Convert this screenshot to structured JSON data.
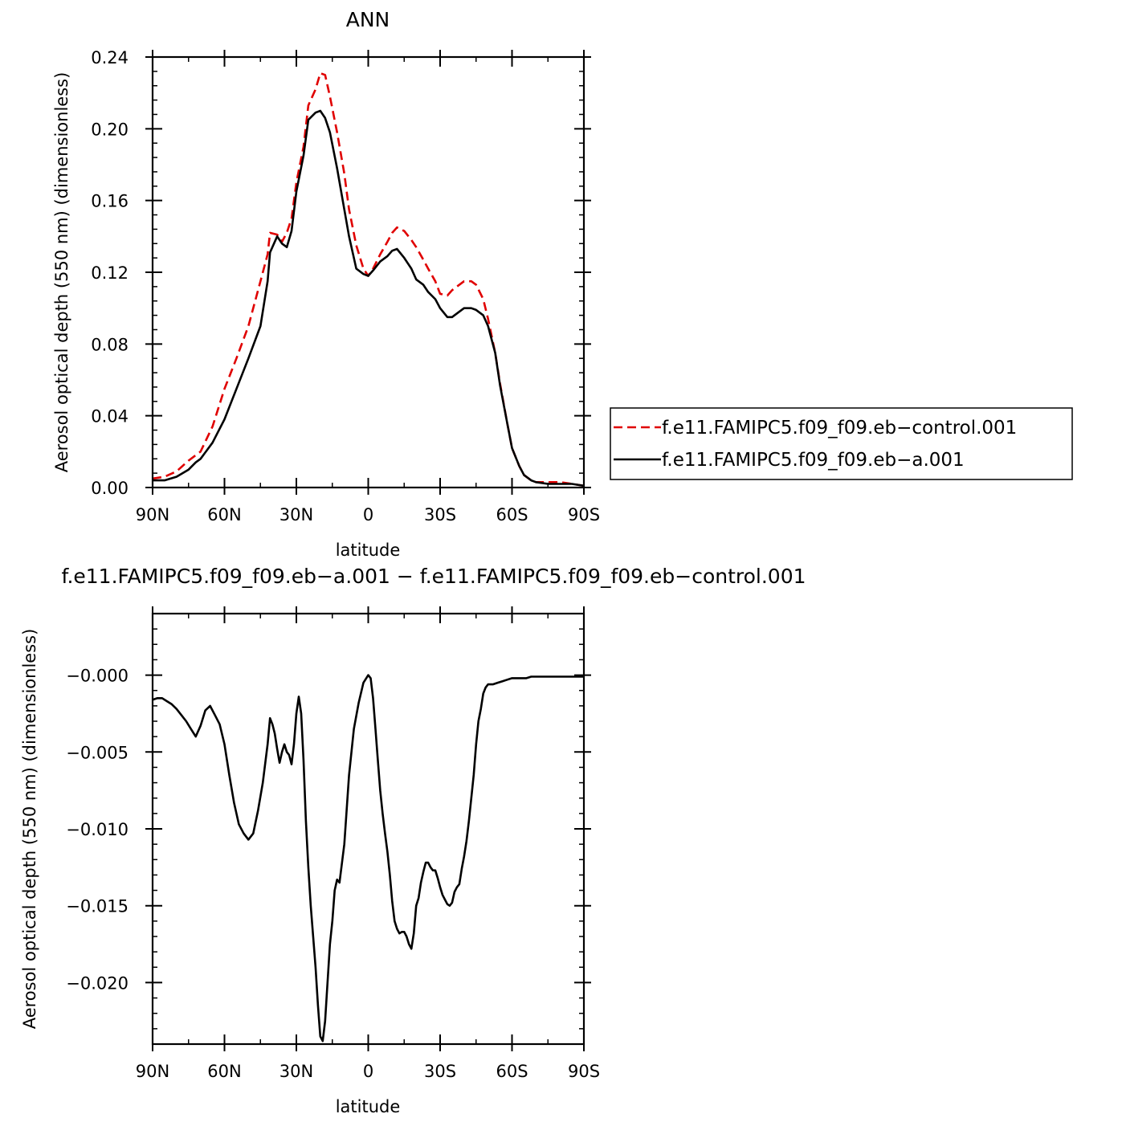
{
  "chart_data": [
    {
      "type": "line",
      "title": "ANN",
      "xlabel": "latitude",
      "ylabel": "Aerosol optical depth (550 nm) (dimensionless)",
      "xlim": [
        -90,
        90
      ],
      "ylim": [
        0,
        0.24
      ],
      "xticks": [
        -90,
        -60,
        -30,
        0,
        30,
        60,
        90
      ],
      "xtick_labels": [
        "90N",
        "60N",
        "30N",
        "0",
        "30S",
        "60S",
        "90S"
      ],
      "yticks": [
        0,
        0.04,
        0.08,
        0.12,
        0.16,
        0.2,
        0.24
      ],
      "ytick_labels": [
        "0.00",
        "0.04",
        "0.08",
        "0.12",
        "0.16",
        "0.20",
        "0.24"
      ],
      "legend_position": "right",
      "series": [
        {
          "name": "f.e11.FAMIPC5.f09_f09.eb−control.001",
          "color": "#e00000",
          "dash": "dashed",
          "x": [
            -90,
            -85,
            -80,
            -75,
            -70,
            -65,
            -60,
            -55,
            -50,
            -45,
            -42,
            -41,
            -38,
            -36,
            -34,
            -32,
            -30,
            -27,
            -25,
            -22,
            -20,
            -18,
            -16,
            -13,
            -10,
            -8,
            -5,
            -2,
            0,
            2,
            5,
            8,
            10,
            12,
            15,
            18,
            20,
            23,
            25,
            28,
            30,
            33,
            35,
            38,
            40,
            43,
            45,
            48,
            50,
            53,
            55,
            58,
            60,
            63,
            65,
            68,
            70,
            75,
            80,
            85,
            90
          ],
          "y": [
            0.005,
            0.006,
            0.009,
            0.015,
            0.02,
            0.034,
            0.055,
            0.072,
            0.09,
            0.115,
            0.13,
            0.142,
            0.141,
            0.137,
            0.142,
            0.15,
            0.17,
            0.19,
            0.213,
            0.222,
            0.231,
            0.23,
            0.218,
            0.198,
            0.175,
            0.155,
            0.135,
            0.122,
            0.118,
            0.122,
            0.13,
            0.137,
            0.142,
            0.145,
            0.143,
            0.138,
            0.134,
            0.127,
            0.122,
            0.115,
            0.108,
            0.107,
            0.11,
            0.113,
            0.115,
            0.115,
            0.113,
            0.105,
            0.094,
            0.075,
            0.058,
            0.036,
            0.022,
            0.012,
            0.007,
            0.004,
            0.003,
            0.003,
            0.003,
            0.002,
            0.001
          ]
        },
        {
          "name": "f.e11.FAMIPC5.f09_f09.eb−a.001",
          "color": "#000000",
          "dash": "solid",
          "x": [
            -90,
            -85,
            -80,
            -75,
            -72,
            -70,
            -65,
            -60,
            -55,
            -50,
            -45,
            -42,
            -41,
            -38,
            -36,
            -34,
            -32,
            -30,
            -27,
            -25,
            -22,
            -20,
            -18,
            -16,
            -13,
            -10,
            -8,
            -5,
            -2,
            0,
            2,
            5,
            8,
            10,
            12,
            15,
            18,
            20,
            23,
            25,
            28,
            30,
            33,
            35,
            38,
            40,
            43,
            45,
            48,
            50,
            53,
            55,
            58,
            60,
            63,
            65,
            68,
            70,
            75,
            80,
            85,
            90
          ],
          "y": [
            0.004,
            0.004,
            0.006,
            0.01,
            0.014,
            0.016,
            0.025,
            0.038,
            0.055,
            0.072,
            0.09,
            0.115,
            0.131,
            0.14,
            0.136,
            0.134,
            0.143,
            0.165,
            0.185,
            0.205,
            0.209,
            0.21,
            0.206,
            0.198,
            0.178,
            0.155,
            0.14,
            0.122,
            0.119,
            0.118,
            0.121,
            0.126,
            0.129,
            0.132,
            0.133,
            0.128,
            0.122,
            0.116,
            0.113,
            0.109,
            0.105,
            0.1,
            0.095,
            0.095,
            0.098,
            0.1,
            0.1,
            0.099,
            0.096,
            0.09,
            0.075,
            0.057,
            0.036,
            0.022,
            0.012,
            0.007,
            0.004,
            0.003,
            0.002,
            0.002,
            0.002,
            0.001
          ]
        }
      ]
    },
    {
      "type": "line",
      "title": "f.e11.FAMIPC5.f09_f09.eb−a.001 − f.e11.FAMIPC5.f09_f09.eb−control.001",
      "xlabel": "latitude",
      "ylabel": "Aerosol optical depth (550 nm) (dimensionless)",
      "xlim": [
        -90,
        90
      ],
      "ylim": [
        -0.024,
        0.004
      ],
      "xticks": [
        -90,
        -60,
        -30,
        0,
        30,
        60,
        90
      ],
      "xtick_labels": [
        "90N",
        "60N",
        "30N",
        "0",
        "30S",
        "60S",
        "90S"
      ],
      "yticks": [
        -0.02,
        -0.015,
        -0.01,
        -0.005,
        0
      ],
      "ytick_labels": [
        "−0.020",
        "−0.015",
        "−0.010",
        "−0.005",
        "−0.000"
      ],
      "series": [
        {
          "color": "#000000",
          "dash": "solid",
          "x": [
            -90,
            -88,
            -86,
            -84,
            -82,
            -80,
            -78,
            -76,
            -74,
            -72,
            -70,
            -68,
            -66,
            -64,
            -62,
            -60,
            -58,
            -56,
            -54,
            -52,
            -50,
            -48,
            -46,
            -44,
            -42,
            -41,
            -40,
            -39,
            -38,
            -37,
            -36,
            -35,
            -34,
            -33,
            -32,
            -31,
            -30,
            -29,
            -28,
            -27,
            -26,
            -25,
            -24,
            -23,
            -22,
            -21,
            -20,
            -19,
            -18,
            -17,
            -16,
            -15,
            -14,
            -13,
            -12,
            -10,
            -8,
            -6,
            -4,
            -2,
            0,
            1,
            2,
            3,
            4,
            5,
            6,
            7,
            8,
            9,
            10,
            11,
            12,
            13,
            14,
            15,
            16,
            17,
            18,
            19,
            20,
            21,
            22,
            23,
            24,
            25,
            26,
            27,
            28,
            29,
            30,
            31,
            32,
            33,
            34,
            35,
            36,
            37,
            38,
            39,
            40,
            41,
            42,
            43,
            44,
            45,
            46,
            47,
            48,
            49,
            50,
            52,
            54,
            56,
            58,
            60,
            62,
            64,
            66,
            68,
            70,
            72,
            74,
            76,
            78,
            80,
            82,
            84,
            86,
            88,
            90
          ],
          "y": [
            -0.0016,
            -0.0015,
            -0.0015,
            -0.0017,
            -0.0019,
            -0.0022,
            -0.0026,
            -0.003,
            -0.0035,
            -0.004,
            -0.0033,
            -0.0023,
            -0.002,
            -0.0026,
            -0.0032,
            -0.0045,
            -0.0065,
            -0.0083,
            -0.0097,
            -0.0103,
            -0.0107,
            -0.0103,
            -0.0088,
            -0.007,
            -0.0045,
            -0.0028,
            -0.0032,
            -0.0038,
            -0.0048,
            -0.0057,
            -0.005,
            -0.0045,
            -0.005,
            -0.0052,
            -0.0058,
            -0.0045,
            -0.0025,
            -0.0014,
            -0.0025,
            -0.0055,
            -0.0095,
            -0.0125,
            -0.015,
            -0.017,
            -0.019,
            -0.0215,
            -0.0235,
            -0.0238,
            -0.0225,
            -0.02,
            -0.0175,
            -0.016,
            -0.014,
            -0.0133,
            -0.0135,
            -0.011,
            -0.0065,
            -0.0035,
            -0.0018,
            -0.0005,
            0.0,
            -0.0002,
            -0.0015,
            -0.0035,
            -0.0055,
            -0.0075,
            -0.009,
            -0.0103,
            -0.0115,
            -0.013,
            -0.0147,
            -0.016,
            -0.0165,
            -0.0168,
            -0.0167,
            -0.0167,
            -0.017,
            -0.0175,
            -0.0178,
            -0.0168,
            -0.015,
            -0.0145,
            -0.0135,
            -0.0128,
            -0.0122,
            -0.0122,
            -0.0125,
            -0.0127,
            -0.0127,
            -0.0132,
            -0.0138,
            -0.0143,
            -0.0146,
            -0.0149,
            -0.015,
            -0.0148,
            -0.0141,
            -0.0138,
            -0.0136,
            -0.0126,
            -0.0118,
            -0.0108,
            -0.0095,
            -0.008,
            -0.0065,
            -0.0045,
            -0.003,
            -0.0022,
            -0.0012,
            -0.0008,
            -0.0006,
            -0.0006,
            -0.0005,
            -0.0004,
            -0.0003,
            -0.0002,
            -0.0002,
            -0.0002,
            -0.0002,
            -0.0001,
            -0.0001,
            -0.0001,
            -0.0001,
            -0.0001,
            -0.0001,
            -0.0001,
            -0.0001,
            -0.0001,
            -0.0001,
            -0.0001,
            -0.0001
          ]
        }
      ]
    }
  ]
}
